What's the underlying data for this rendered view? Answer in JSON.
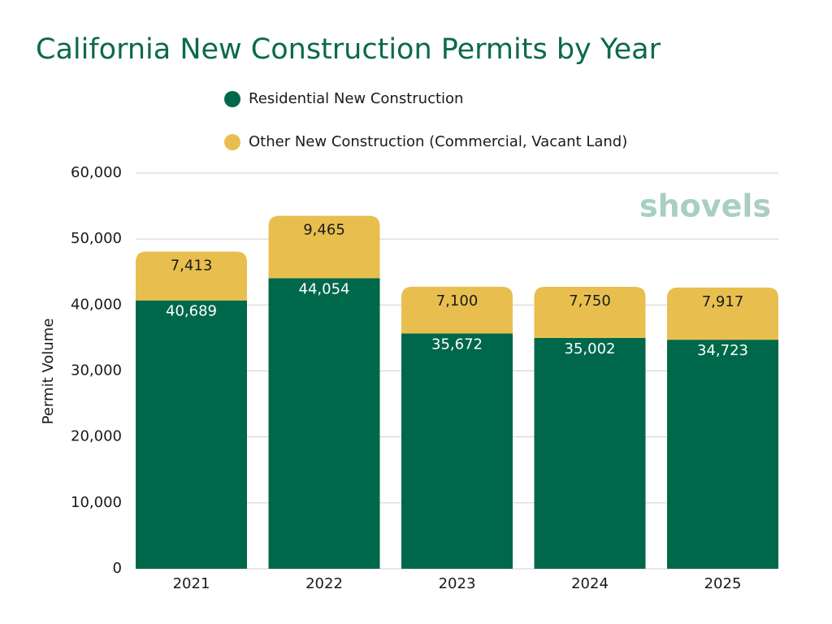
{
  "chart_data": {
    "type": "stacked_bar",
    "title": "California New Construction Permits by Year",
    "y_label": "Permit Volume",
    "watermark": "shovels",
    "categories": [
      "2021",
      "2022",
      "2023",
      "2024",
      "2025"
    ],
    "series": [
      {
        "name": "Residential New Construction",
        "color": "#00684a",
        "label_color": "#ffffff",
        "values": [
          40689,
          44054,
          35672,
          35002,
          34723
        ],
        "value_labels": [
          "40,689",
          "44,054",
          "35,672",
          "35,002",
          "34,723"
        ]
      },
      {
        "name": "Other New Construction (Commercial, Vacant Land)",
        "color": "#e8bf4f",
        "label_color": "#1a1a1a",
        "values": [
          7413,
          9465,
          7100,
          7750,
          7917
        ],
        "value_labels": [
          "7,413",
          "9,465",
          "7,100",
          "7,750",
          "7,917"
        ]
      }
    ],
    "ylim": [
      0,
      60000
    ],
    "yticks": [
      0,
      {
        "value": 10000,
        "label": "10,000"
      },
      {
        "value": 20000,
        "label": "20,000"
      },
      {
        "value": 30000,
        "label": "30,000"
      },
      {
        "value": 40000,
        "label": "40,000"
      },
      {
        "value": 50000,
        "label": "50,000"
      },
      {
        "value": 60000,
        "label": "60,000"
      }
    ],
    "grid": true
  }
}
